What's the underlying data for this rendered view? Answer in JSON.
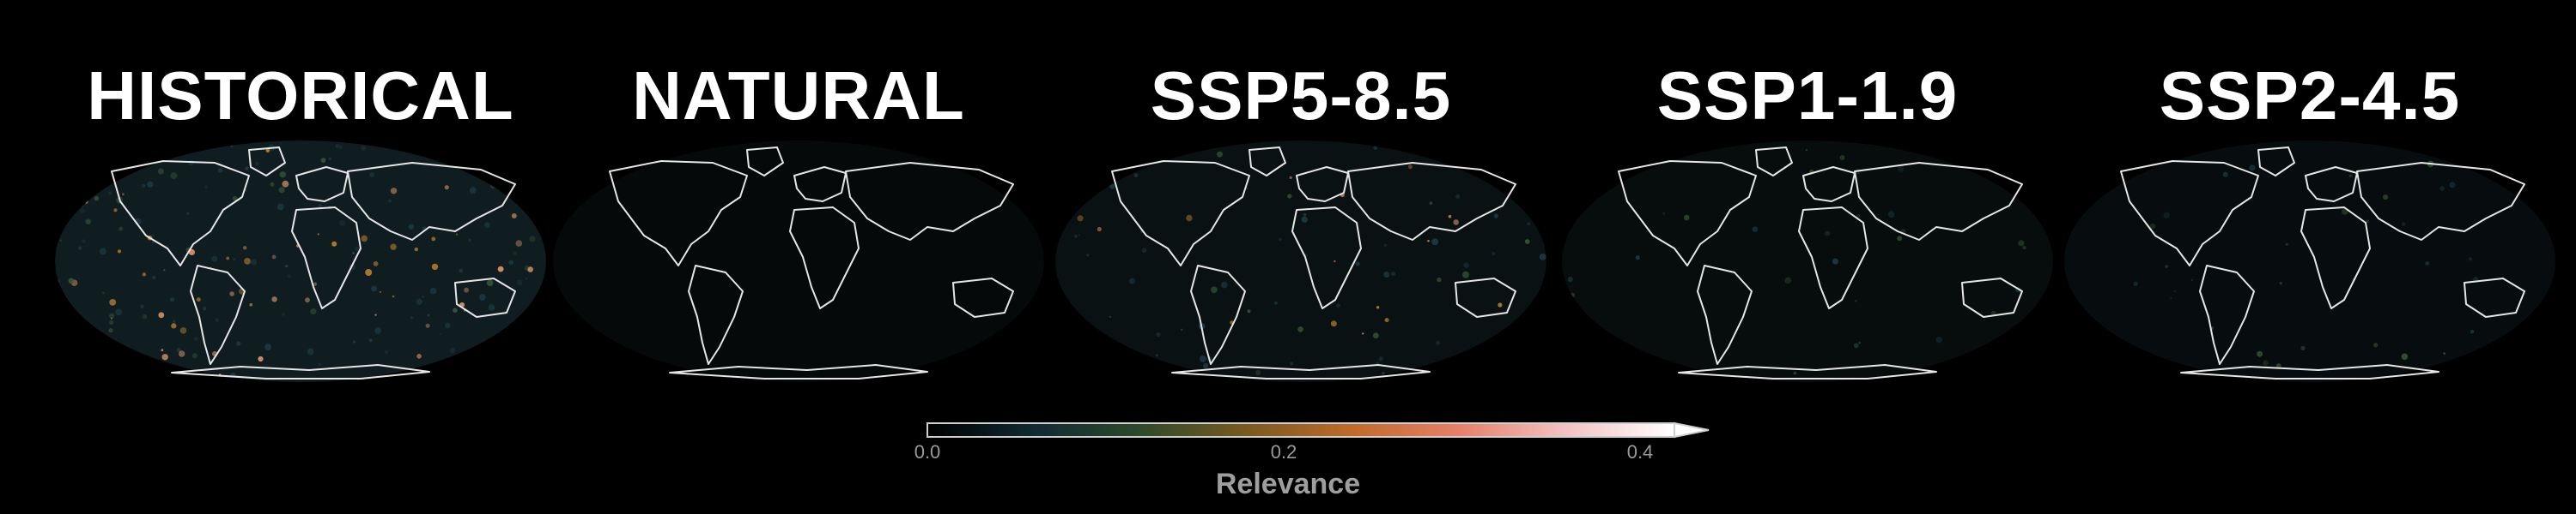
{
  "panels": [
    {
      "title": "HISTORICAL",
      "intensity": 0.55,
      "hot": true
    },
    {
      "title": "NATURAL",
      "intensity": 0.0,
      "hot": false
    },
    {
      "title": "SSP5-8.5",
      "intensity": 0.22,
      "hot": true
    },
    {
      "title": "SSP1-1.9",
      "intensity": 0.08,
      "hot": false
    },
    {
      "title": "SSP2-4.5",
      "intensity": 0.1,
      "hot": false
    }
  ],
  "colorbar": {
    "title": "Relevance",
    "min": 0.0,
    "max": 0.4,
    "ticks": [
      "0.0",
      "0.2",
      "0.4"
    ],
    "tick_values": [
      0.0,
      0.2,
      0.4
    ],
    "colors": [
      "#000000",
      "#0f2a33",
      "#2d4a2a",
      "#7a5a1e",
      "#c26a2a",
      "#e8806a",
      "#f4c2c2",
      "#ffffff"
    ]
  }
}
